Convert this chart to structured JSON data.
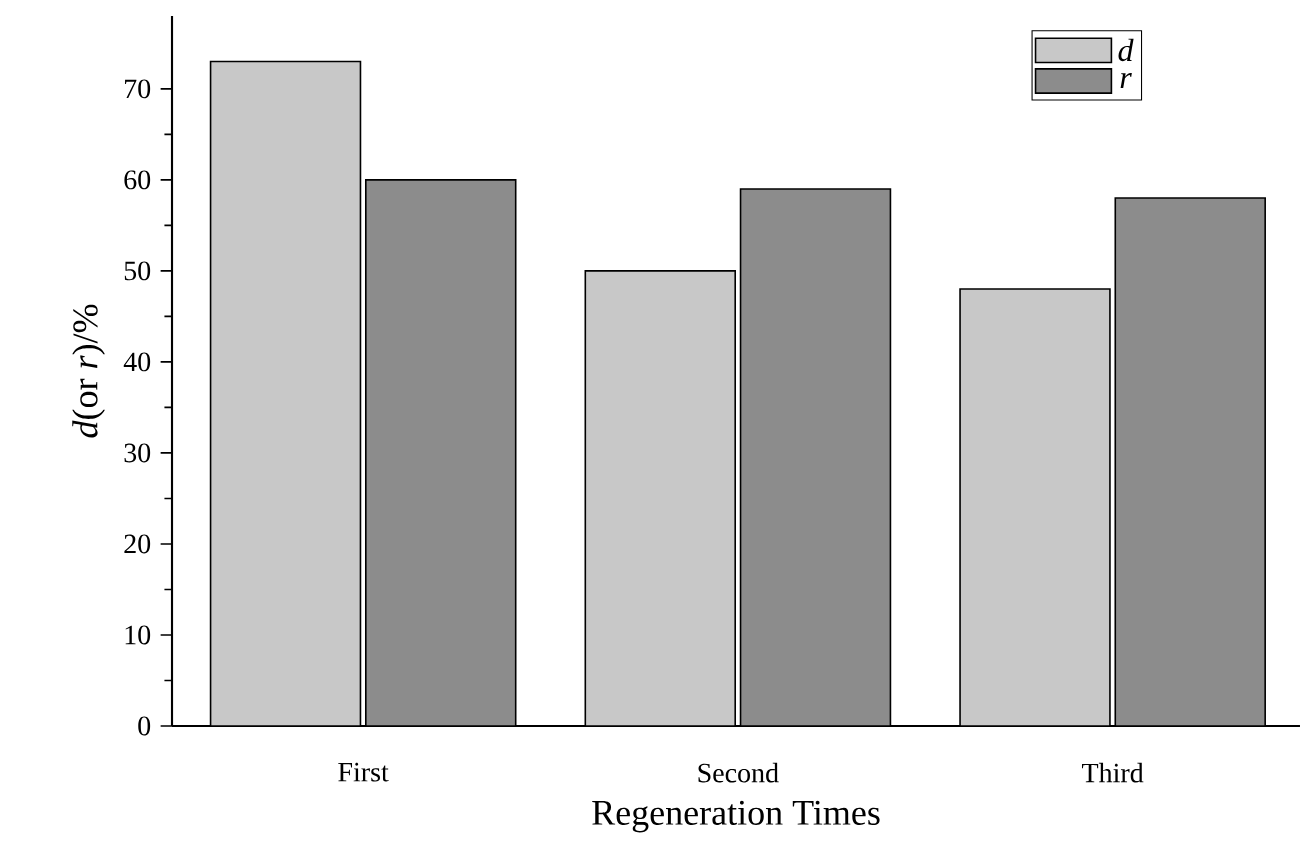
{
  "chart_data": {
    "type": "bar",
    "xlabel": "Regeneration Times",
    "ylabel": "*d*(or *r*)/%",
    "categories": [
      "First",
      "Second",
      "Third"
    ],
    "series": [
      {
        "name": "d",
        "color": "#c8c8c8",
        "values": [
          73,
          50,
          48
        ]
      },
      {
        "name": "r",
        "color": "#8c8c8c",
        "values": [
          60,
          59,
          58
        ]
      }
    ],
    "ylim": [
      0,
      78
    ],
    "yticks": [
      0,
      10,
      20,
      30,
      40,
      50,
      60,
      70
    ],
    "legend": "top right",
    "grid": false
  }
}
